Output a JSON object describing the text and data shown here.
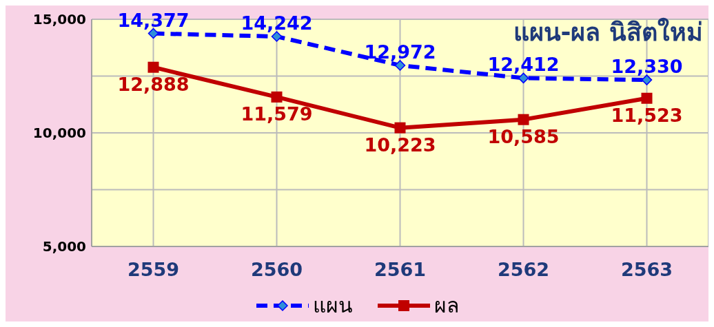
{
  "chart_data": {
    "type": "line",
    "title": "แผน-ผล นิสิตใหม่",
    "categories": [
      "2559",
      "2560",
      "2561",
      "2562",
      "2563"
    ],
    "series": [
      {
        "name": "แผน",
        "color": "#0000ff",
        "values": [
          14377,
          14242,
          12972,
          12412,
          12330
        ],
        "value_labels": [
          "14,377",
          "14,242",
          "12,972",
          "12,412",
          "12,330"
        ],
        "marker": "diamond",
        "line_style": "dashed"
      },
      {
        "name": "ผล",
        "color": "#c00000",
        "values": [
          12888,
          11579,
          10223,
          10585,
          11523
        ],
        "value_labels": [
          "12,888",
          "11,579",
          "10,223",
          "10,585",
          "11,523"
        ],
        "marker": "square",
        "line_style": "solid"
      }
    ],
    "ylim": [
      5000,
      15000
    ],
    "yticks": [
      {
        "value": 5000,
        "label": "5,000"
      },
      {
        "value": 7500,
        "label": null
      },
      {
        "value": 10000,
        "label": "10,000"
      },
      {
        "value": 12500,
        "label": null
      },
      {
        "value": 15000,
        "label": "15,000"
      }
    ],
    "grid": true,
    "legend": "bottom"
  }
}
